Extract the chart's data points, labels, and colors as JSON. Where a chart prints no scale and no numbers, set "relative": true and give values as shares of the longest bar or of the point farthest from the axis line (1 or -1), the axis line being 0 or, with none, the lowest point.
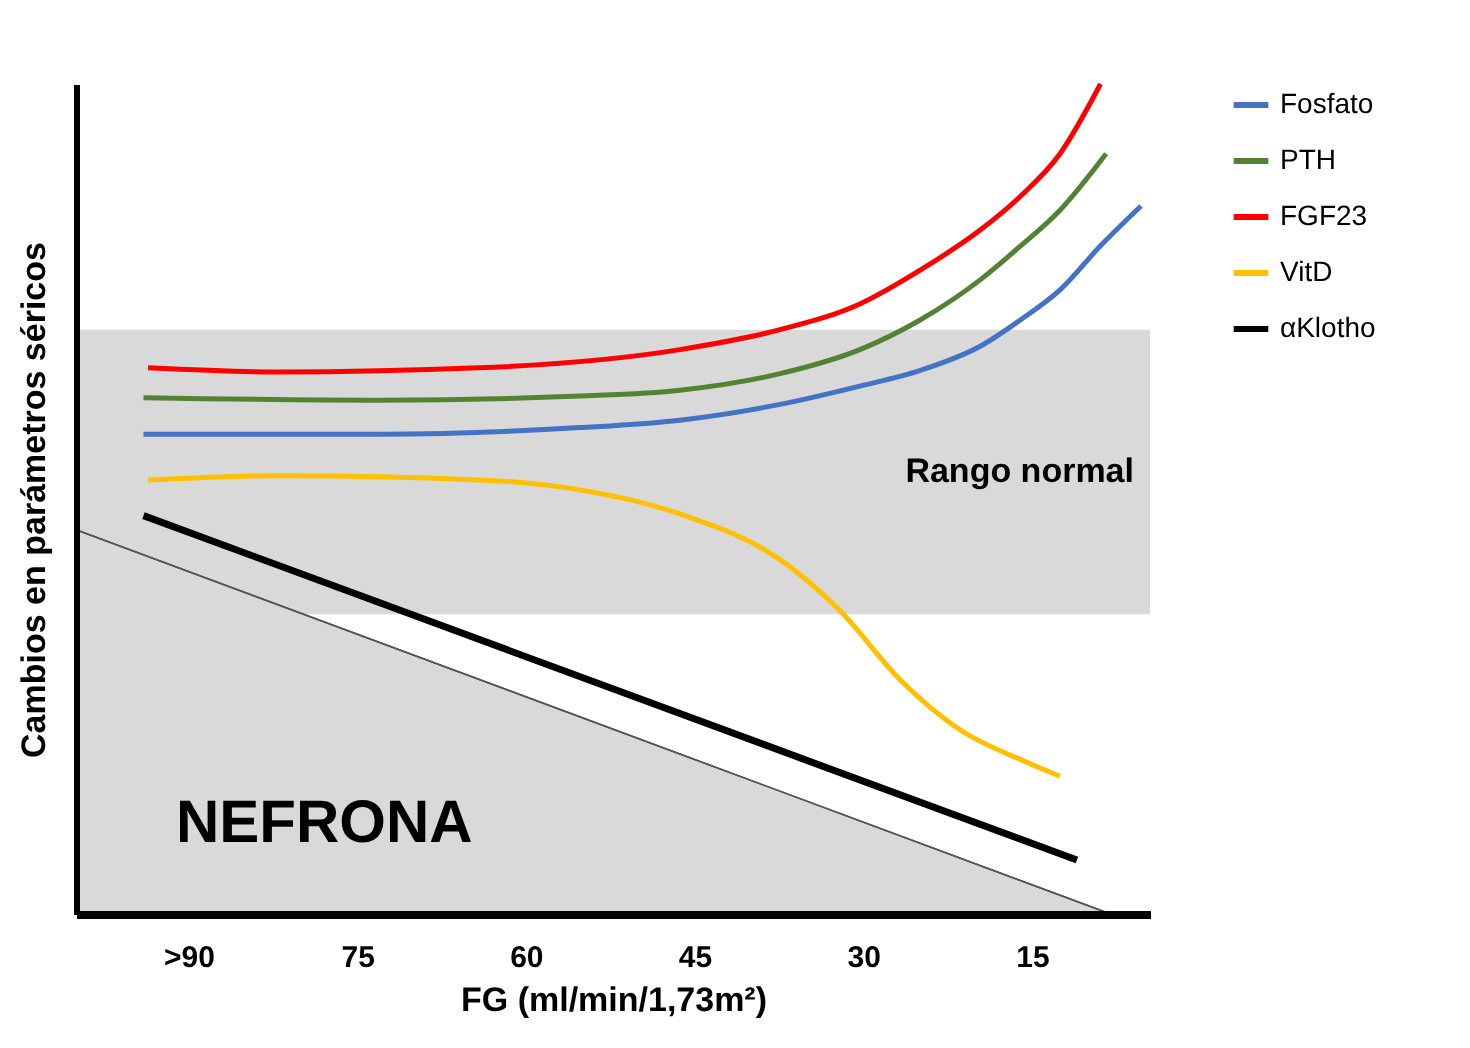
{
  "chart_data": {
    "type": "line",
    "relative": true,
    "xlabel": "FG (ml/min/1,73m²)",
    "ylabel": "Cambios en parámetros séricos",
    "xlim": [
      100,
      4.5
    ],
    "xticks": [
      {
        "value": 90,
        "label": ">90"
      },
      75,
      60,
      45,
      30,
      15
    ],
    "tick_labels": "x",
    "grid": false,
    "legend": "top right",
    "series": [
      {
        "name": "Fosfato",
        "color": "#4472c4",
        "x": [
          94,
          73,
          55.2,
          46.3,
          37.4,
          30.3,
          24.9,
          19.6,
          16,
          12.5,
          8.9,
          5.3
        ],
        "values": [
          0.578,
          0.578,
          0.586,
          0.595,
          0.614,
          0.636,
          0.655,
          0.684,
          0.716,
          0.752,
          0.805,
          0.853
        ]
      },
      {
        "name": "PTH",
        "color": "#548235",
        "x": [
          94,
          73,
          55.2,
          46.3,
          37.4,
          30.3,
          24.9,
          19.6,
          16,
          12.5,
          8.4
        ],
        "values": [
          0.622,
          0.619,
          0.624,
          0.631,
          0.651,
          0.68,
          0.716,
          0.764,
          0.805,
          0.848,
          0.916
        ]
      },
      {
        "name": "FGF23",
        "color": "#ff0000",
        "x": [
          93.6,
          82,
          64.2,
          46.3,
          37.4,
          30.3,
          24.9,
          19.6,
          16,
          12.5,
          8.9
        ],
        "values": [
          0.658,
          0.653,
          0.658,
          0.68,
          0.704,
          0.735,
          0.776,
          0.824,
          0.865,
          0.916,
          1
        ]
      },
      {
        "name": "VitD",
        "color": "#ffc000",
        "x": [
          93.6,
          82,
          64.2,
          55.2,
          46.3,
          37.4,
          32.1,
          26.7,
          21.4,
          16,
          12.5
        ],
        "values": [
          0.523,
          0.528,
          0.523,
          0.511,
          0.482,
          0.427,
          0.366,
          0.282,
          0.222,
          0.186,
          0.166
        ]
      },
      {
        "name": "αKlotho",
        "color": "#000000",
        "x": [
          94,
          11
        ],
        "values": [
          0.48,
          0.065
        ]
      },
      {
        "type": "area",
        "color": "#d9d9d9",
        "x": [
          100,
          8
        ],
        "values": [
          0.463,
          0
        ]
      }
    ],
    "bands": [
      {
        "axis": "y",
        "from": 0.361,
        "to": 0.704,
        "label": "Rango normal",
        "color": "#d9d9d9"
      }
    ],
    "annotations": [
      "NEFRONA"
    ]
  }
}
